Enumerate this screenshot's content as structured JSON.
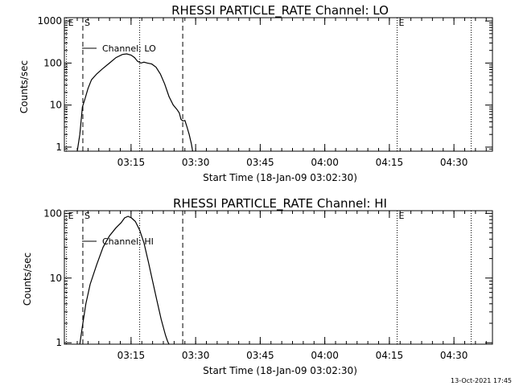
{
  "footer_timestamp": "13-Oct-2021 17:45",
  "chart_data": [
    {
      "type": "line",
      "title": "RHESSI PARTICLE_RATE Channel: LO",
      "xlabel": "Start Time (18-Jan-09 03:02:30)",
      "ylabel": "Counts/sec",
      "yscale": "log",
      "ylim": [
        0.8,
        1200
      ],
      "xlim_minutes_after_start": [
        0,
        97
      ],
      "xtick_minutes": [
        12.5,
        27.5,
        42.5,
        57.5,
        72.5,
        87.5
      ],
      "xtick_labels": [
        "03:15",
        "03:30",
        "03:45",
        "04:00",
        "04:15",
        "04:30"
      ],
      "yticks": [
        1,
        10,
        100,
        1000
      ],
      "ytick_labels": [
        "1",
        "10",
        "100",
        "1000"
      ],
      "grid": false,
      "legend": {
        "placement": "top-left",
        "label": "Channel: LO"
      },
      "markers": [
        {
          "label": "E",
          "style": "dotted",
          "minute": -2.5
        },
        {
          "label": "S",
          "style": "dashed",
          "minute": 1.3
        },
        {
          "label": "",
          "style": "dotted",
          "minute": 14.5
        },
        {
          "label": "",
          "style": "dashed",
          "minute": 24.5
        },
        {
          "label": "E",
          "style": "dotted",
          "minute": 74.3
        },
        {
          "label": "",
          "style": "dotted",
          "minute": 91.5
        }
      ],
      "series": [
        {
          "x": [
            0.0,
            0.6,
            1.2,
            1.8,
            2.5,
            3.3,
            4.5,
            6.0,
            7.5,
            9.0,
            10.5,
            11.5,
            12.5,
            13.3,
            14.0,
            14.8,
            15.5,
            16.3,
            17.3,
            18.3,
            19.3,
            20.3,
            21.3,
            22.3,
            23.1,
            23.7,
            24.1,
            24.5,
            25.0,
            25.5,
            26.0,
            26.5,
            26.8
          ],
          "y": [
            0.8,
            2,
            9,
            14,
            25,
            40,
            55,
            75,
            100,
            135,
            160,
            165,
            155,
            135,
            110,
            100,
            105,
            100,
            95,
            80,
            55,
            32,
            16,
            10,
            8,
            6.5,
            4.6,
            4.2,
            4.3,
            3,
            2,
            1.2,
            0.8
          ]
        }
      ]
    },
    {
      "type": "line",
      "title": "RHESSI PARTICLE_RATE Channel: HI",
      "xlabel": "Start Time (18-Jan-09 03:02:30)",
      "ylabel": "Counts/sec",
      "yscale": "log",
      "ylim": [
        0.95,
        110
      ],
      "xlim_minutes_after_start": [
        0,
        97
      ],
      "xtick_minutes": [
        12.5,
        27.5,
        42.5,
        57.5,
        72.5,
        87.5
      ],
      "xtick_labels": [
        "03:15",
        "03:30",
        "03:45",
        "04:00",
        "04:15",
        "04:30"
      ],
      "yticks": [
        1,
        10,
        100
      ],
      "ytick_labels": [
        "1",
        "10",
        "100"
      ],
      "grid": false,
      "legend": {
        "placement": "top-left",
        "label": "Channel: HI"
      },
      "markers": [
        {
          "label": "E",
          "style": "dotted",
          "minute": -2.5
        },
        {
          "label": "S",
          "style": "dashed",
          "minute": 1.3
        },
        {
          "label": "",
          "style": "dotted",
          "minute": 14.5
        },
        {
          "label": "",
          "style": "dashed",
          "minute": 24.5
        },
        {
          "label": "E",
          "style": "dotted",
          "minute": 74.3
        },
        {
          "label": "",
          "style": "dotted",
          "minute": 91.5
        }
      ],
      "series": [
        {
          "x": [
            0.6,
            1.2,
            2.0,
            3.0,
            4.5,
            6.0,
            7.5,
            9.0,
            10.2,
            11.0,
            11.8,
            12.6,
            13.5,
            14.5,
            15.5,
            16.5,
            17.5,
            18.5,
            19.5,
            20.5,
            21.0,
            21.3
          ],
          "y": [
            0.95,
            1.8,
            4,
            8,
            16,
            30,
            45,
            60,
            72,
            85,
            90,
            85,
            75,
            55,
            35,
            18,
            9,
            4.5,
            2.3,
            1.3,
            1.05,
            0.95
          ]
        }
      ]
    }
  ]
}
